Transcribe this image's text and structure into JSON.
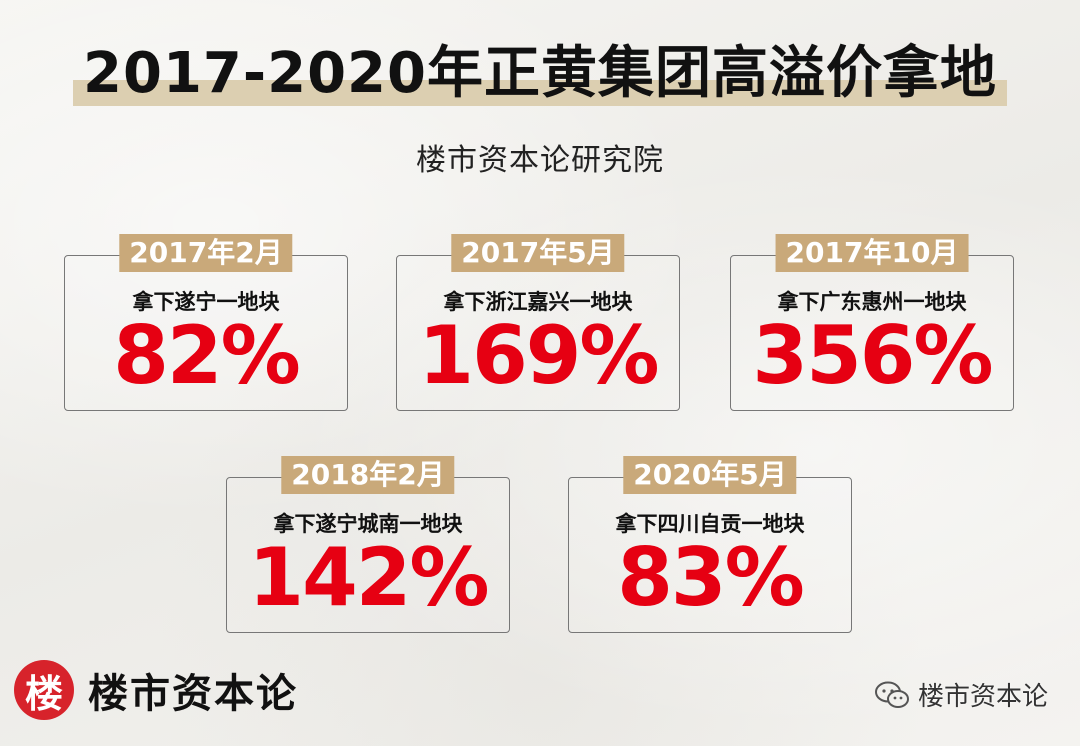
{
  "title": "2017-2020年正黄集团高溢价拿地",
  "subtitle": "楼市资本论研究院",
  "cards": [
    {
      "date": "2017年2月",
      "desc": "拿下遂宁一地块",
      "value": "82%"
    },
    {
      "date": "2017年5月",
      "desc": "拿下浙江嘉兴一地块",
      "value": "169%"
    },
    {
      "date": "2017年10月",
      "desc": "拿下广东惠州一地块",
      "value": "356%"
    },
    {
      "date": "2018年2月",
      "desc": "拿下遂宁城南一地块",
      "value": "142%"
    },
    {
      "date": "2020年5月",
      "desc": "拿下四川自贡一地块",
      "value": "83%"
    }
  ],
  "brand": {
    "logo_char": "楼",
    "name": "楼市资本论"
  },
  "watermark": {
    "icon": "wechat-icon",
    "text": "楼市资本论"
  },
  "colors": {
    "accent_red": "#e60012",
    "date_tag": "#c9a97a",
    "title_highlight": "#dccfb1",
    "logo_red": "#d7232b"
  }
}
